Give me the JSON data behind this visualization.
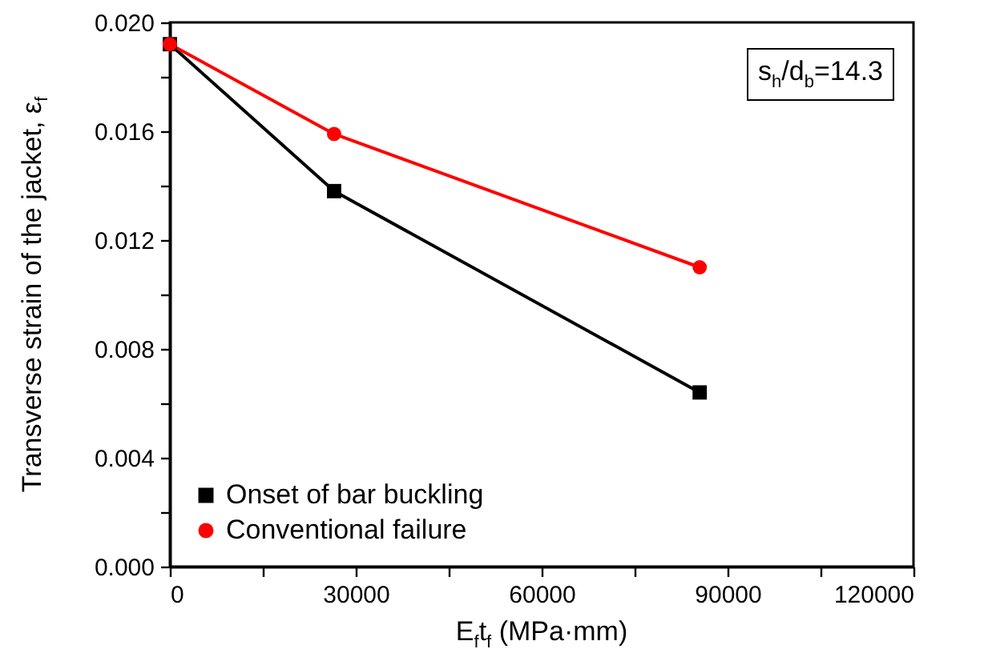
{
  "chart_data": {
    "type": "line",
    "xlabel": "E$_{f}$t$_{f}$ (MPa·mm)",
    "ylabel": "Transverse strain of the jacket, ε$_{f}$",
    "x": [
      0,
      26500,
      85500
    ],
    "series": [
      {
        "name": "Onset of bar buckling",
        "color": "#000000",
        "marker": "square",
        "values": [
          0.0192,
          0.0138,
          0.0064
        ]
      },
      {
        "name": "Conventional failure",
        "color": "#ff0000",
        "marker": "circle",
        "values": [
          0.0192,
          0.0159,
          0.011
        ]
      }
    ],
    "xlim": [
      0,
      120000
    ],
    "xticks": [
      0,
      {
        "value": 15000,
        "label": null
      },
      30000,
      {
        "value": 45000,
        "label": null
      },
      60000,
      {
        "value": 75000,
        "label": null
      },
      90000,
      {
        "value": 105000,
        "label": null
      },
      120000
    ],
    "ylim": [
      0,
      0.02
    ],
    "yticks": [
      {
        "value": 0,
        "label": "0.000"
      },
      {
        "value": 0.002,
        "label": null
      },
      {
        "value": 0.004,
        "label": "0.004"
      },
      {
        "value": 0.006,
        "label": null
      },
      {
        "value": 0.008,
        "label": "0.008"
      },
      {
        "value": 0.01,
        "label": null
      },
      {
        "value": 0.012,
        "label": "0.012"
      },
      {
        "value": 0.014,
        "label": null
      },
      {
        "value": 0.016,
        "label": "0.016"
      },
      {
        "value": 0.018,
        "label": null
      },
      {
        "value": 0.02,
        "label": "0.020"
      }
    ],
    "legend": "bottom left",
    "grid": false,
    "line_style": "solid",
    "annotations": [
      "s$_{h}$/d$_{b}$=14.3"
    ]
  }
}
